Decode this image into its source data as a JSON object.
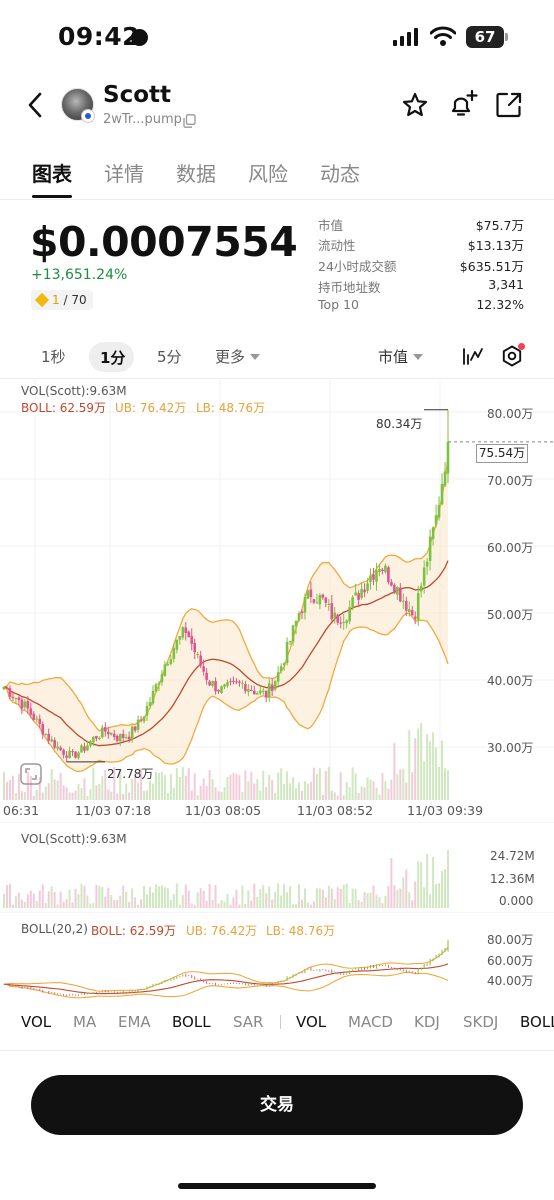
{
  "status_bar": {
    "time": "09:42",
    "battery": "67"
  },
  "header": {
    "token_name": "Scott",
    "token_address": "2wTr...pump"
  },
  "tabs": [
    {
      "label": "图表",
      "active": true
    },
    {
      "label": "详情",
      "active": false
    },
    {
      "label": "数据",
      "active": false
    },
    {
      "label": "风险",
      "active": false
    },
    {
      "label": "动态",
      "active": false
    }
  ],
  "price": {
    "value": "$0.0007554",
    "change": "+13,651.24%",
    "rank_current": "1",
    "rank_total": " / 70"
  },
  "stats": [
    {
      "key": "市值",
      "value": "$75.7万"
    },
    {
      "key": "流动性",
      "value": "$13.13万"
    },
    {
      "key": "24小时成交额",
      "value": "$635.51万"
    },
    {
      "key": "持币地址数",
      "value": "3,341"
    },
    {
      "key": "Top 10",
      "value": "12.32%"
    }
  ],
  "intervals": [
    "1秒",
    "1分",
    "5分",
    "更多"
  ],
  "metric_select": "市值",
  "main_chart": {
    "vol_legend": "VOL(Scott):9.63M",
    "boll_label": "BOLL: 62.59万",
    "ub_label": "UB: 76.42万",
    "lb_label": "LB: 48.76万",
    "y_ticks": [
      "80.00万",
      "70.00万",
      "60.00万",
      "50.00万",
      "40.00万",
      "30.00万"
    ],
    "x_ticks": [
      "06:31",
      "11/03 07:18",
      "11/03 08:05",
      "11/03 08:52",
      "11/03 09:39"
    ],
    "high_label": "80.34万",
    "low_label": "27.78万",
    "current_label": "75.54万",
    "colors": {
      "up": "#7cc242",
      "down": "#e0558f",
      "mid": "#c0482b",
      "band": "#f2a93b"
    }
  },
  "vol_chart": {
    "legend": "VOL(Scott):9.63M",
    "y_ticks": [
      "24.72M",
      "12.36M",
      "0.000"
    ]
  },
  "boll_chart": {
    "title": "BOLL(20,2)",
    "boll_label": "BOLL: 62.59万",
    "ub_label": "UB: 76.42万",
    "lb_label": "LB: 48.76万",
    "y_ticks": [
      "80.00万",
      "60.00万",
      "40.00万"
    ]
  },
  "chart_data": {
    "type": "candlestick",
    "y_unit": "万",
    "ylim": [
      26,
      82
    ],
    "x_ticks": [
      "06:31",
      "11/03 07:18",
      "11/03 08:05",
      "11/03 08:52",
      "11/03 09:39"
    ],
    "close_series": [
      39.0,
      37.5,
      35.8,
      33.5,
      31.2,
      29.5,
      28.6,
      29.8,
      31.5,
      32.5,
      31.4,
      31.8,
      33.9,
      37.5,
      42.0,
      45.2,
      47.5,
      43.2,
      39.8,
      38.5,
      38.9,
      39.5,
      38.4,
      37.8,
      40.6,
      45.2,
      50.5,
      53.1,
      51.8,
      49.2,
      49.8,
      52.5,
      55.2,
      57.4,
      55.1,
      52.3,
      49.5,
      56.8,
      64.5,
      75.54
    ],
    "high": 80.34,
    "low": 27.78,
    "last": 75.54,
    "indicators": {
      "BOLL": 62.59,
      "UB": 76.42,
      "LB": 48.76
    },
    "volume_max": "24.72M",
    "volume_current": "9.63M"
  },
  "indicator_tabs": {
    "main": [
      {
        "label": "VOL",
        "active": true
      },
      {
        "label": "MA",
        "active": false
      },
      {
        "label": "EMA",
        "active": false
      },
      {
        "label": "BOLL",
        "active": true
      },
      {
        "label": "SAR",
        "active": false
      }
    ],
    "sub": [
      {
        "label": "VOL",
        "active": true
      },
      {
        "label": "MACD",
        "active": false
      },
      {
        "label": "KDJ",
        "active": false
      },
      {
        "label": "SKDJ",
        "active": false
      },
      {
        "label": "BOLL",
        "active": true
      }
    ]
  },
  "trade_button": "交易"
}
